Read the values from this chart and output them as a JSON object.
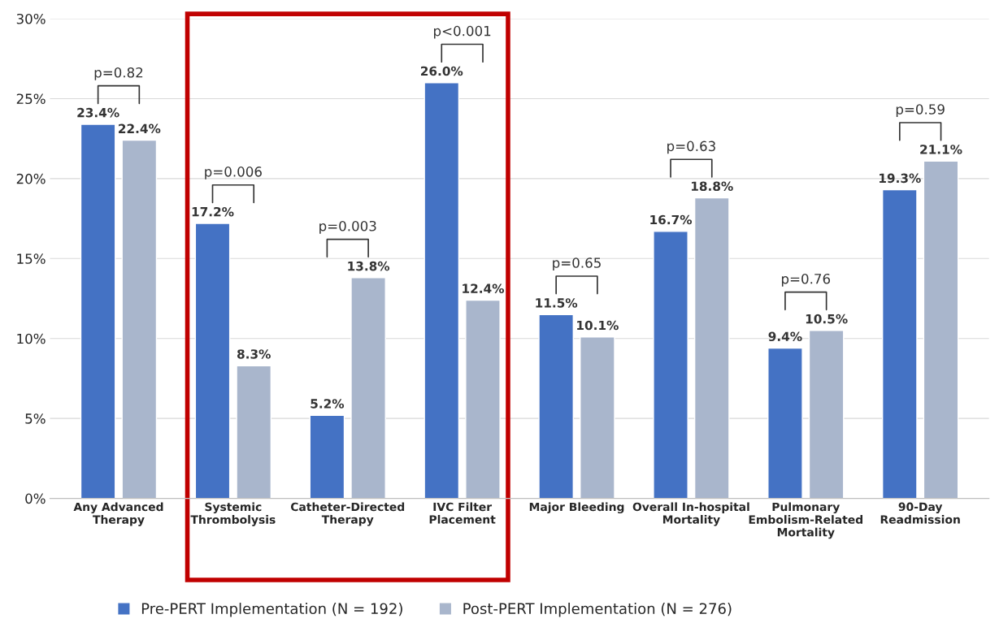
{
  "chart_data": {
    "type": "bar",
    "categories": [
      "Any Advanced\nTherapy",
      "Systemic\nThrombolysis",
      "Catheter-Directed\nTherapy",
      "IVC Filter\nPlacement",
      "Major Bleeding",
      "Overall In-hospital\nMortality",
      "Pulmonary\nEmbolism-Related\nMortality",
      "90-Day\nReadmission"
    ],
    "series": [
      {
        "name": "Pre-PERT Implementation (N = 192)",
        "color": "#4472c4",
        "values": [
          23.4,
          17.2,
          5.2,
          26.0,
          11.5,
          16.7,
          9.4,
          19.3
        ],
        "value_labels": [
          "23.4%",
          "17.2%",
          "5.2%",
          "26.0%",
          "11.5%",
          "16.7%",
          "9.4%",
          "19.3%"
        ]
      },
      {
        "name": "Post-PERT Implementation (N = 276)",
        "color": "#a9b6cc",
        "values": [
          22.4,
          8.3,
          13.8,
          12.4,
          10.1,
          18.8,
          10.5,
          21.1
        ],
        "value_labels": [
          "22.4%",
          "8.3%",
          "13.8%",
          "12.4%",
          "10.1%",
          "18.8%",
          "10.5%",
          "21.1%"
        ]
      }
    ],
    "ylim": [
      0,
      30
    ],
    "yticks": [
      {
        "value": 0,
        "label": "0%"
      },
      {
        "value": 5,
        "label": "5%"
      },
      {
        "value": 10,
        "label": "10%"
      },
      {
        "value": 15,
        "label": "15%"
      },
      {
        "value": 20,
        "label": "20%"
      },
      {
        "value": 25,
        "label": "25%"
      },
      {
        "value": 30,
        "label": "30%"
      }
    ],
    "grid": "y",
    "legend": "bottom",
    "annotations": [
      "p=0.82",
      "p=0.006",
      "p=0.003",
      "p<0.001",
      "p=0.65",
      "p=0.63",
      "p=0.76",
      "p=0.59"
    ]
  }
}
